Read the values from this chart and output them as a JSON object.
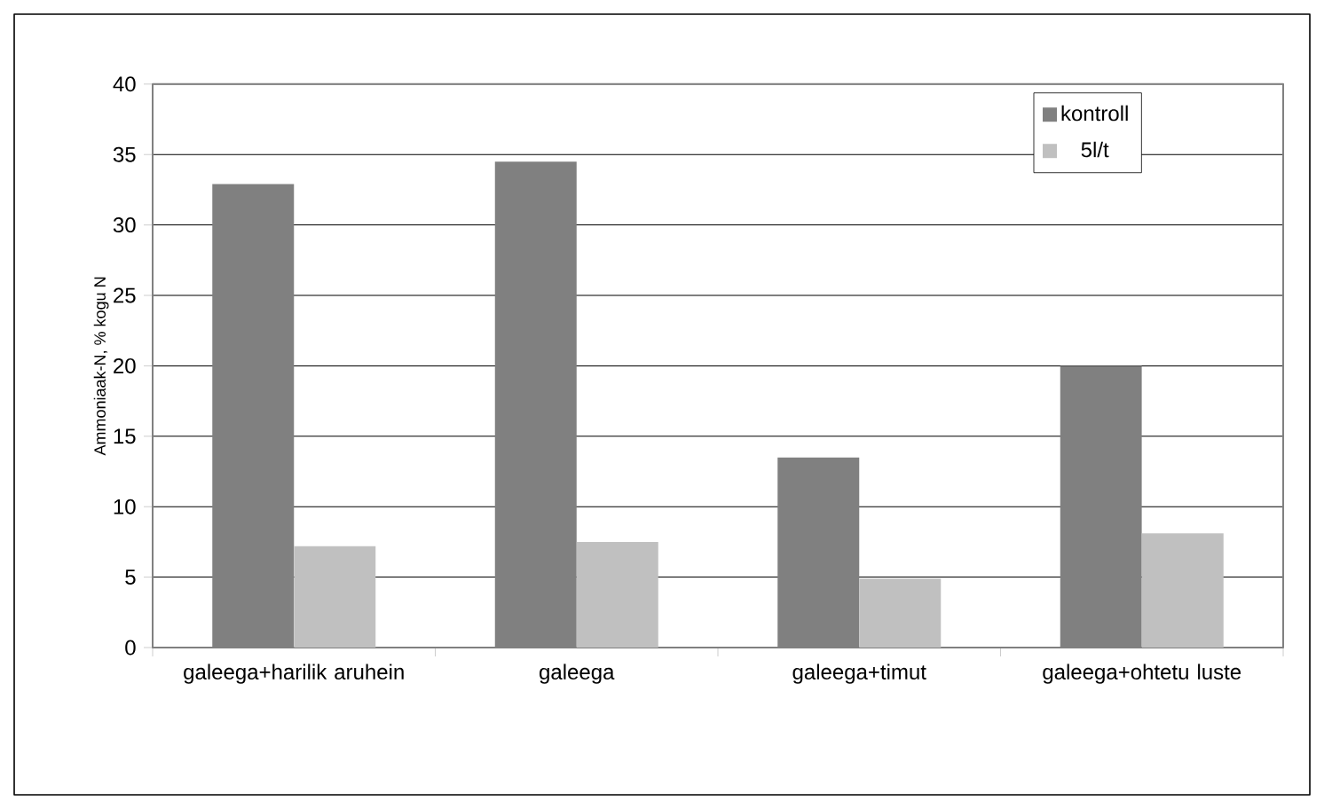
{
  "chart_data": {
    "type": "bar",
    "ylabel": "Ammoniaak-N, % kogu N",
    "categories": [
      "galeega+harilik aruhein",
      "galeega",
      "galeega+timut",
      "galeega+ohtetu luste"
    ],
    "series": [
      {
        "name": "kontroll",
        "color": "#808080",
        "values": [
          32.9,
          34.5,
          13.5,
          20.0
        ]
      },
      {
        "name": "5l/t",
        "color": "#c0c0c0",
        "values": [
          7.2,
          7.5,
          4.9,
          8.1
        ]
      }
    ],
    "ylim": [
      0,
      40
    ],
    "yticks": [
      0,
      5,
      10,
      15,
      20,
      25,
      30,
      35,
      40
    ],
    "grid": "y",
    "legend": "top right"
  }
}
